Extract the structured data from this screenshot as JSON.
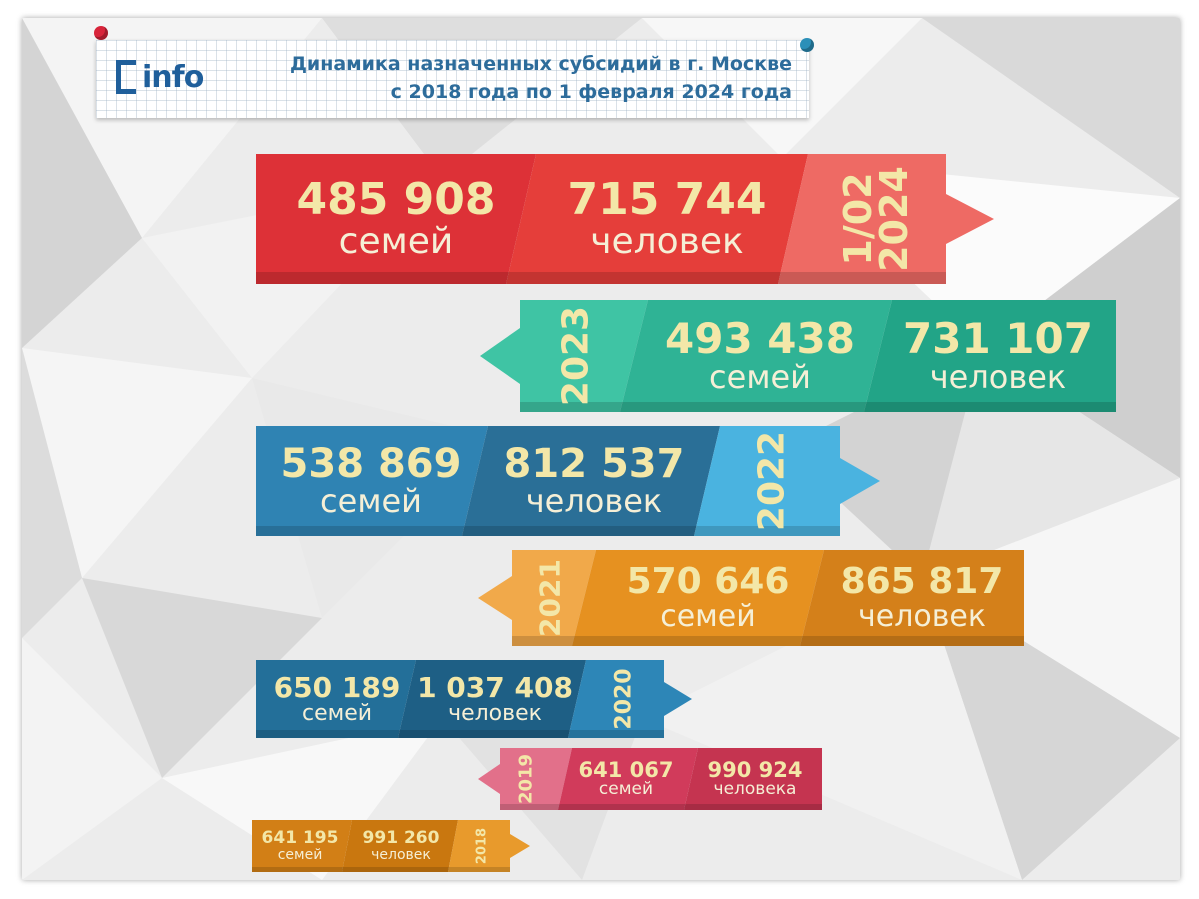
{
  "header": {
    "logo_text": "info",
    "title_line1": "Динамика назначенных субсидий в г. Москве",
    "title_line2": "с 2018 года по 1 февраля 2024 года"
  },
  "rows": [
    {
      "year": "1/02 2024",
      "families": "485 908",
      "families_label": "семей",
      "people": "715 744",
      "people_label": "человек",
      "color": "#e3373d"
    },
    {
      "year": "2023",
      "families": "493 438",
      "families_label": "семей",
      "people": "731 107",
      "people_label": "человек",
      "color": "#28b896"
    },
    {
      "year": "2022",
      "families": "538 869",
      "families_label": "семей",
      "people": "812 537",
      "people_label": "человек",
      "color": "#2d7fb0"
    },
    {
      "year": "2021",
      "families": "570 646",
      "families_label": "семей",
      "people": "865 817",
      "people_label": "человек",
      "color": "#e59420"
    },
    {
      "year": "2020",
      "families": "650 189",
      "families_label": "семей",
      "people": "1 037 408",
      "people_label": "человек",
      "color": "#236d95"
    },
    {
      "year": "2019",
      "families": "641 067",
      "families_label": "семей",
      "people": "990 924",
      "people_label": "человека",
      "color": "#d6405d"
    },
    {
      "year": "2018",
      "families": "641 195",
      "families_label": "семей",
      "people": "991 260",
      "people_label": "человек",
      "color": "#d8861c"
    }
  ]
}
